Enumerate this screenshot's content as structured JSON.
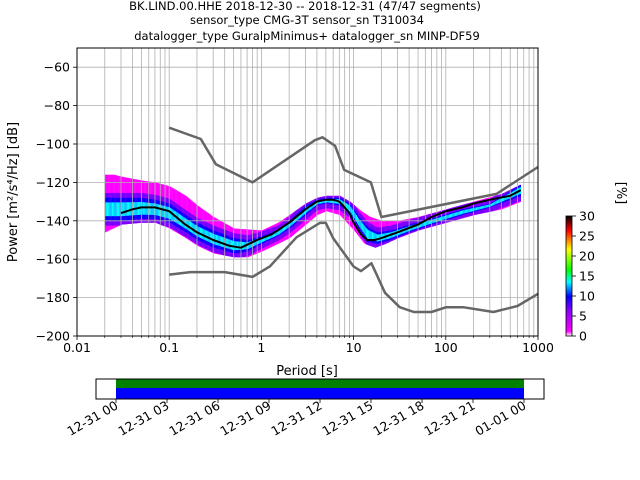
{
  "title_lines": [
    "BK.LIND.00.HHE   2018-12-30 -- 2018-12-31  (47/47 segments)",
    "sensor_type CMG-3T sensor_sn T310034",
    "datalogger_type GuralpMinimus+ datalogger_sn MINP-DF59"
  ],
  "chart_data": {
    "type": "heatmap",
    "xlabel": "Period [s]",
    "ylabel": "Power [m²/s⁴/Hz] [dB]",
    "xscale": "log",
    "xlim": [
      0.01,
      1000
    ],
    "ylim": [
      -200,
      -50
    ],
    "xticks": [
      0.01,
      0.1,
      1,
      10,
      100,
      1000
    ],
    "xtick_labels": [
      "0.01",
      "0.1",
      "1",
      "10",
      "100",
      "1000"
    ],
    "yticks": [
      -200,
      -180,
      -160,
      -140,
      -120,
      -100,
      -80,
      -60
    ],
    "grid": true,
    "colorbar": {
      "label": "[%]",
      "range": [
        0,
        30
      ],
      "ticks": [
        0,
        5,
        10,
        15,
        20,
        25,
        30
      ],
      "colors": [
        "#ffffff",
        "#ff00ff",
        "#0000ff",
        "#00ffff",
        "#00ff00",
        "#ffff00",
        "#ff0000",
        "#000000"
      ]
    },
    "series": [
      {
        "role": "high-noise-model",
        "color": "#666666",
        "x": [
          0.1,
          0.22,
          0.32,
          0.8,
          3.8,
          4.6,
          6.3,
          7.9,
          15.4,
          20,
          354.8,
          1000
        ],
        "y": [
          -91.5,
          -97.4,
          -110.5,
          -120,
          -98,
          -96.5,
          -101,
          -113.5,
          -120,
          -138,
          -126,
          -112
        ]
      },
      {
        "role": "low-noise-model",
        "color": "#666666",
        "x": [
          0.1,
          0.17,
          0.4,
          0.8,
          1.24,
          2.4,
          4.3,
          5,
          6,
          10,
          12,
          15.6,
          21.9,
          31.6,
          45,
          70,
          101,
          154,
          328,
          600,
          1000
        ],
        "y": [
          -168,
          -166.7,
          -166.7,
          -169.2,
          -163.7,
          -148.6,
          -141.1,
          -141.1,
          -149,
          -163.8,
          -166.2,
          -162.1,
          -177.5,
          -185,
          -187.5,
          -187.5,
          -185,
          -185,
          -187.5,
          -184.4,
          -178
        ]
      },
      {
        "role": "median",
        "color": "#000000",
        "x": [
          0.03,
          0.04,
          0.05,
          0.07,
          0.1,
          0.15,
          0.2,
          0.3,
          0.45,
          0.6,
          0.9,
          1.3,
          2,
          3,
          4,
          5,
          6,
          7,
          8,
          9,
          10,
          12,
          14,
          17,
          20,
          30,
          50,
          70,
          100,
          150,
          200,
          300,
          500,
          650
        ],
        "y": [
          -136,
          -134,
          -133,
          -133,
          -135,
          -142,
          -146,
          -150,
          -153,
          -154,
          -150,
          -147,
          -141,
          -134,
          -130,
          -129,
          -129,
          -130,
          -133,
          -136,
          -141,
          -147,
          -150,
          -150,
          -149,
          -146,
          -142,
          -138,
          -135,
          -133,
          -131,
          -129,
          -127,
          -124
        ]
      }
    ],
    "density": {
      "upper": [
        [
          0.025,
          -116
        ],
        [
          0.03,
          -117
        ],
        [
          0.05,
          -119
        ],
        [
          0.07,
          -120
        ],
        [
          0.1,
          -122
        ],
        [
          0.15,
          -127
        ],
        [
          0.2,
          -132
        ],
        [
          0.3,
          -138
        ],
        [
          0.5,
          -144
        ],
        [
          1,
          -145
        ],
        [
          1.5,
          -141
        ],
        [
          2,
          -137
        ],
        [
          3,
          -131
        ],
        [
          4,
          -128
        ],
        [
          5,
          -127
        ],
        [
          7,
          -127
        ],
        [
          9,
          -130
        ],
        [
          12,
          -135
        ],
        [
          15,
          -138
        ],
        [
          20,
          -140
        ],
        [
          30,
          -140
        ],
        [
          50,
          -138
        ],
        [
          100,
          -134
        ],
        [
          200,
          -130
        ],
        [
          400,
          -126
        ],
        [
          650,
          -121
        ]
      ],
      "lower": [
        [
          0.02,
          -146
        ],
        [
          0.03,
          -142
        ],
        [
          0.05,
          -141
        ],
        [
          0.07,
          -141
        ],
        [
          0.1,
          -144
        ],
        [
          0.15,
          -149
        ],
        [
          0.2,
          -153
        ],
        [
          0.3,
          -157
        ],
        [
          0.5,
          -159
        ],
        [
          0.7,
          -159
        ],
        [
          1,
          -156
        ],
        [
          1.5,
          -152
        ],
        [
          2,
          -149
        ],
        [
          3,
          -142
        ],
        [
          4,
          -137
        ],
        [
          5,
          -135
        ],
        [
          7,
          -137
        ],
        [
          10,
          -145
        ],
        [
          13,
          -152
        ],
        [
          17,
          -154
        ],
        [
          22,
          -152
        ],
        [
          30,
          -149
        ],
        [
          50,
          -145
        ],
        [
          100,
          -141
        ],
        [
          200,
          -137
        ],
        [
          400,
          -134
        ],
        [
          650,
          -130
        ]
      ],
      "core_upper": [
        [
          0.03,
          -128
        ],
        [
          0.05,
          -128
        ],
        [
          0.07,
          -129
        ],
        [
          0.1,
          -131
        ],
        [
          0.15,
          -137
        ],
        [
          0.2,
          -141
        ],
        [
          0.3,
          -145
        ],
        [
          0.5,
          -149
        ],
        [
          0.7,
          -150
        ],
        [
          1,
          -148
        ],
        [
          1.5,
          -145
        ],
        [
          2,
          -140
        ],
        [
          3,
          -132
        ],
        [
          4,
          -129
        ],
        [
          5,
          -128
        ],
        [
          7,
          -128
        ],
        [
          9,
          -131
        ],
        [
          11,
          -137
        ],
        [
          14,
          -143
        ],
        [
          18,
          -146
        ],
        [
          25,
          -145
        ],
        [
          40,
          -142
        ],
        [
          80,
          -138
        ],
        [
          150,
          -134
        ],
        [
          300,
          -131
        ],
        [
          650,
          -121
        ]
      ],
      "core_lower": [
        [
          0.03,
          -140
        ],
        [
          0.05,
          -139
        ],
        [
          0.07,
          -139
        ],
        [
          0.1,
          -141
        ],
        [
          0.15,
          -146
        ],
        [
          0.2,
          -150
        ],
        [
          0.3,
          -154
        ],
        [
          0.5,
          -157
        ],
        [
          0.7,
          -156
        ],
        [
          1,
          -152
        ],
        [
          1.5,
          -148
        ],
        [
          2,
          -144
        ],
        [
          3,
          -137
        ],
        [
          4,
          -132
        ],
        [
          5,
          -131
        ],
        [
          7,
          -132
        ],
        [
          9,
          -136
        ],
        [
          11,
          -143
        ],
        [
          14,
          -151
        ],
        [
          18,
          -152
        ],
        [
          25,
          -150
        ],
        [
          40,
          -146
        ],
        [
          80,
          -141
        ],
        [
          150,
          -137
        ],
        [
          300,
          -133
        ],
        [
          650,
          -127
        ]
      ]
    }
  },
  "timeline": {
    "tick_labels": [
      "12-31 00",
      "12-31 03",
      "12-31 06",
      "12-31 09",
      "12-31 12",
      "12-31 15",
      "12-31 18",
      "12-31 21",
      "01-01 00"
    ],
    "bar_colors": [
      "#008000",
      "#0000ff"
    ],
    "start_fraction": 0.0,
    "end_fraction": 1.0
  }
}
